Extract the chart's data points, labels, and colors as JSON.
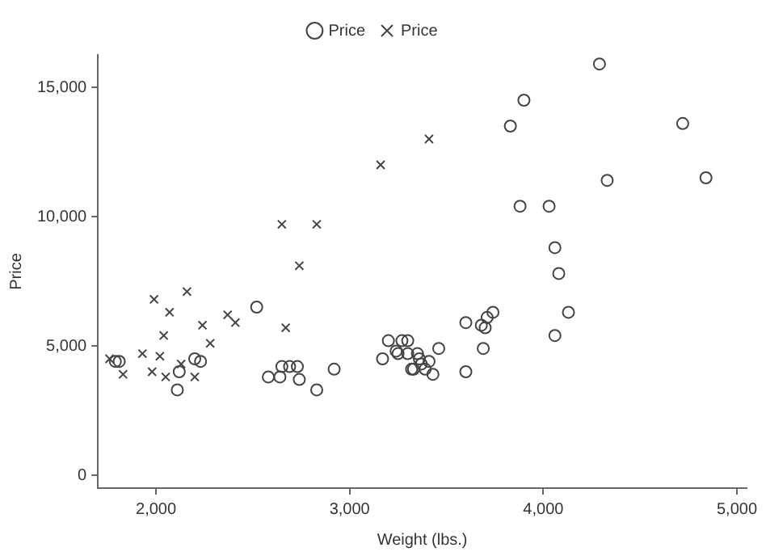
{
  "chart_data": {
    "type": "scatter",
    "xlabel": "Weight (lbs.)",
    "ylabel": "Price",
    "grid": false,
    "legend": "top",
    "xlim": [
      1700,
      5050
    ],
    "ylim": [
      -500,
      16250
    ],
    "xticks": [
      {
        "value": 2000,
        "label": "2,000"
      },
      {
        "value": 3000,
        "label": "3,000"
      },
      {
        "value": 4000,
        "label": "4,000"
      },
      {
        "value": 5000,
        "label": "5,000"
      }
    ],
    "yticks": [
      0,
      {
        "value": 5000,
        "label": "5,000"
      },
      {
        "value": 10000,
        "label": "10,000"
      },
      {
        "value": 15000,
        "label": "15,000"
      }
    ],
    "series": [
      {
        "name": "Price",
        "color": "#444444",
        "marker": "circle",
        "x": [
          1790,
          1810,
          2120,
          2110,
          2200,
          2230,
          2520,
          2580,
          2640,
          2650,
          2690,
          2730,
          2740,
          2830,
          2920,
          3170,
          3200,
          3240,
          3270,
          3300,
          3330,
          3360,
          4290,
          3900,
          3830,
          4720,
          4330,
          4840,
          3880,
          4030,
          4060,
          4080,
          4130,
          4060,
          3600,
          3680,
          3700,
          3710,
          3740,
          3690,
          3600,
          3460,
          3410,
          3430,
          3390,
          3370,
          3320,
          3350,
          3300,
          3250
        ],
        "values": [
          4400,
          4400,
          4000,
          3300,
          4500,
          4400,
          6500,
          3800,
          3800,
          4200,
          4200,
          4200,
          3700,
          3300,
          4100,
          4500,
          5200,
          4800,
          5200,
          5200,
          4100,
          4500,
          15900,
          14500,
          13500,
          13600,
          11400,
          11500,
          10400,
          10400,
          8800,
          7800,
          6300,
          5400,
          5900,
          5800,
          5700,
          6100,
          6300,
          4900,
          4000,
          4900,
          4400,
          3900,
          4100,
          4300,
          4100,
          4700,
          4700,
          4700
        ]
      },
      {
        "name": "Price",
        "color": "#444444",
        "marker": "cross",
        "x": [
          1760,
          1830,
          1930,
          1990,
          1980,
          2020,
          2040,
          2050,
          2070,
          2130,
          2160,
          2200,
          2240,
          2280,
          2370,
          2410,
          2650,
          2670,
          2740,
          2830,
          3160,
          3410
        ],
        "values": [
          4500,
          3900,
          4700,
          6800,
          4000,
          4600,
          5400,
          3800,
          6300,
          4300,
          7100,
          3800,
          5800,
          5100,
          6200,
          5900,
          9700,
          5700,
          8100,
          9700,
          12000,
          13000
        ]
      }
    ]
  }
}
